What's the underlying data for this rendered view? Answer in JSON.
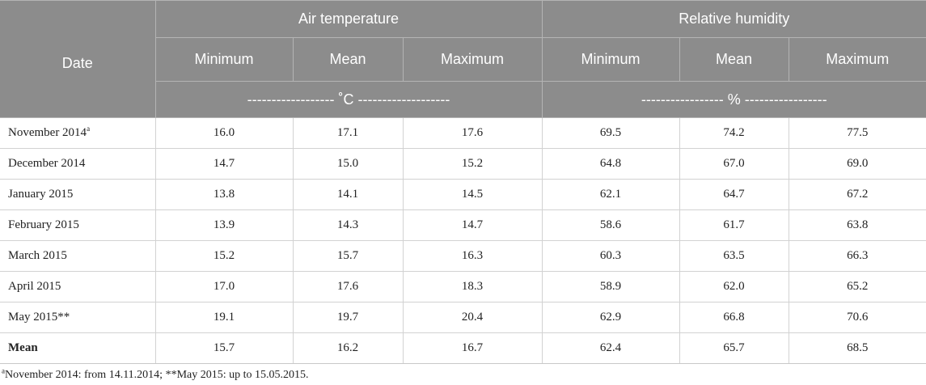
{
  "table": {
    "headers": {
      "date": "Date",
      "air_temperature": "Air temperature",
      "relative_humidity": "Relative humidity",
      "sub": [
        "Minimum",
        "Mean",
        "Maximum",
        "Minimum",
        "Mean",
        "Maximum"
      ],
      "temp_unit": "------------------ ˚C -------------------",
      "hum_unit": "----------------- % -----------------"
    },
    "rows": [
      {
        "date": "November 2014",
        "marker": "a",
        "values": [
          "16.0",
          "17.1",
          "17.6",
          "69.5",
          "74.2",
          "77.5"
        ]
      },
      {
        "date": "December 2014",
        "marker": "",
        "values": [
          "14.7",
          "15.0",
          "15.2",
          "64.8",
          "67.0",
          "69.0"
        ]
      },
      {
        "date": "January 2015",
        "marker": "",
        "values": [
          "13.8",
          "14.1",
          "14.5",
          "62.1",
          "64.7",
          "67.2"
        ]
      },
      {
        "date": "February 2015",
        "marker": "",
        "values": [
          "13.9",
          "14.3",
          "14.7",
          "58.6",
          "61.7",
          "63.8"
        ]
      },
      {
        "date": "March 2015",
        "marker": "",
        "values": [
          "15.2",
          "15.7",
          "16.3",
          "60.3",
          "63.5",
          "66.3"
        ]
      },
      {
        "date": "April 2015",
        "marker": "",
        "values": [
          "17.0",
          "17.6",
          "18.3",
          "58.9",
          "62.0",
          "65.2"
        ]
      },
      {
        "date": "May 2015**",
        "marker": "",
        "values": [
          "19.1",
          "19.7",
          "20.4",
          "62.9",
          "66.8",
          "70.6"
        ]
      },
      {
        "date": "Mean",
        "marker": "",
        "values": [
          "15.7",
          "16.2",
          "16.7",
          "62.4",
          "65.7",
          "68.5"
        ]
      }
    ]
  },
  "footnote": {
    "marker": "a",
    "text": "November 2014: from 14.11.2014; **May 2015: up to 15.05.2015."
  }
}
